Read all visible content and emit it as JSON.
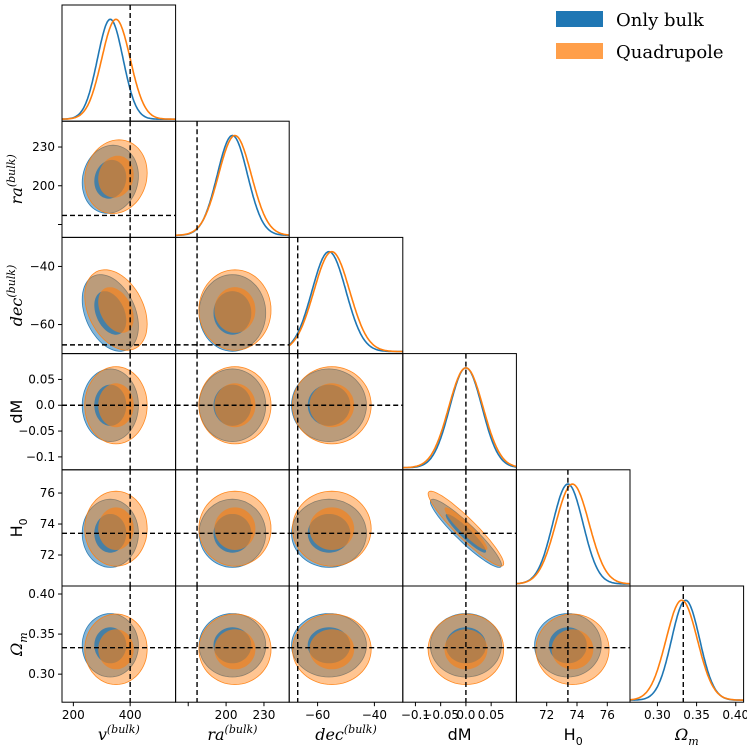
{
  "chart_data": {
    "type": "corner",
    "parameters": [
      {
        "id": "v",
        "label": "v",
        "sup": "(bulk)",
        "ticks": [
          200,
          400
        ],
        "tick_labels": [
          "200",
          "400"
        ],
        "range": [
          160,
          560
        ],
        "truth": 400
      },
      {
        "id": "ra",
        "label": "ra",
        "sup": "(bulk)",
        "ticks": [
          170,
          200,
          230
        ],
        "tick_labels": [
          "",
          "200",
          "230"
        ],
        "range": [
          160,
          250
        ],
        "truth": 177
      },
      {
        "id": "dec",
        "label": "dec",
        "sup": "(bulk)",
        "ticks": [
          -60,
          -40
        ],
        "tick_labels": [
          "−60",
          "−40"
        ],
        "range": [
          -70,
          -30
        ],
        "truth": -67
      },
      {
        "id": "dM",
        "label": "dM",
        "sup": "",
        "ticks": [
          -0.1,
          -0.05,
          0.0,
          0.05
        ],
        "tick_labels": [
          "−0.1",
          "−0.05",
          "0.0",
          "0.05"
        ],
        "range": [
          -0.125,
          0.1
        ],
        "truth": 0.0
      },
      {
        "id": "H0",
        "label": "H",
        "sub": "0",
        "ticks": [
          72,
          74,
          76
        ],
        "tick_labels": [
          "72",
          "74",
          "76"
        ],
        "range": [
          70,
          77.5
        ],
        "truth": 73.4
      },
      {
        "id": "Om",
        "label": "Ω",
        "sub": "m",
        "ticks": [
          0.3,
          0.35,
          0.4
        ],
        "tick_labels": [
          "0.30",
          "0.35",
          "0.40"
        ],
        "range": [
          0.265,
          0.41
        ],
        "truth": 0.333
      }
    ],
    "series": [
      {
        "name": "Only bulk",
        "color": "#1f77b4",
        "means": [
          330,
          205,
          -56,
          0.0,
          73.4,
          0.336
        ],
        "sigmas": [
          45,
          12,
          6,
          0.032,
          1.0,
          0.018
        ]
      },
      {
        "name": "Quadrupole",
        "color": "#ff7f0e",
        "means": [
          350,
          207,
          -55,
          0.0,
          73.7,
          0.331
        ],
        "sigmas": [
          50,
          13,
          6.3,
          0.034,
          1.1,
          0.02
        ]
      }
    ],
    "correlations": [
      [
        3,
        4,
        -0.93
      ],
      [
        0,
        2,
        -0.35
      ],
      [
        0,
        1,
        0.1
      ]
    ],
    "legend": {
      "position": "top-right",
      "entries": [
        "Only bulk",
        "Quadrupole"
      ]
    }
  }
}
